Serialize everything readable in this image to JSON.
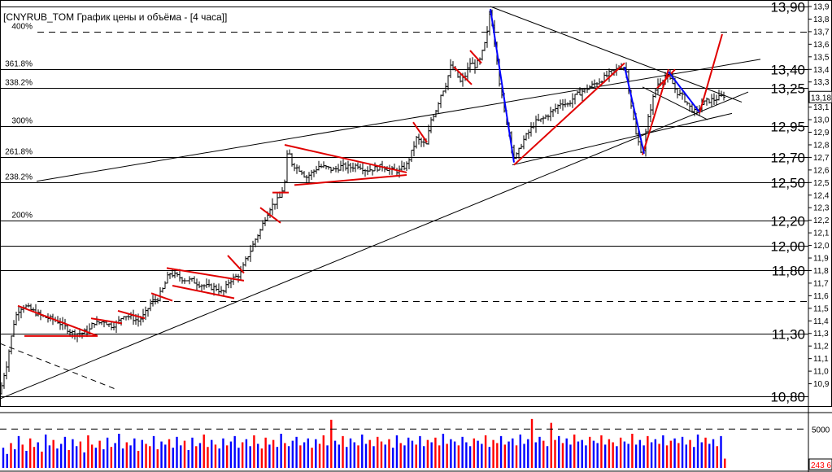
{
  "window": {
    "title": "[CNYRUB_TOM График цены и объёма - [4 часа]]"
  },
  "colors": {
    "bull_volume": "#0000ff",
    "bear_volume": "#ff0000",
    "price_bar": "#000000",
    "trendline_red": "#e00000",
    "trendline_blue": "#0000ff",
    "level_line": "#000000",
    "current_price_box": "#000000",
    "current_volume_text": "#ff0000"
  },
  "chart_data": [
    {
      "type": "ohlc",
      "title": "CNYRUB_TOM",
      "y_ticks_small": [
        "13,9",
        "13,8",
        "13,7",
        "13,6",
        "13,5",
        "13,4",
        "13,3",
        "13,2",
        "13,1",
        "13,0",
        "12,9",
        "12,8",
        "12,7",
        "12,6",
        "12,5",
        "12,4",
        "12,3",
        "12,2",
        "12,1",
        "12,0",
        "11,9",
        "11,8",
        "11,7",
        "11,6",
        "11,5",
        "11,4",
        "11,3",
        "11,2",
        "11,1",
        "11,0",
        "10,9"
      ],
      "ylim": [
        10.8,
        13.95
      ],
      "current_price": "13,18",
      "levels": [
        {
          "value": 13.9,
          "label": "13,90",
          "style": "solid"
        },
        {
          "value": 13.4,
          "label": "13,40",
          "style": "solid"
        },
        {
          "value": 13.25,
          "label": "13,25",
          "style": "solid"
        },
        {
          "value": 12.95,
          "label": "12,95",
          "style": "solid"
        },
        {
          "value": 12.7,
          "label": "12,70",
          "style": "solid"
        },
        {
          "value": 12.5,
          "label": "12,50",
          "style": "solid"
        },
        {
          "value": 12.2,
          "label": "12,20",
          "style": "solid"
        },
        {
          "value": 12.0,
          "label": "12,00",
          "style": "solid"
        },
        {
          "value": 11.8,
          "label": "11,80",
          "style": "solid"
        },
        {
          "value": 11.3,
          "label": "11,30",
          "style": "solid"
        },
        {
          "value": 10.8,
          "label": "10,80",
          "style": "solid"
        }
      ],
      "fib_levels": [
        {
          "value": 13.7,
          "label": "400%"
        },
        {
          "value": 13.4,
          "label": "361.8%"
        },
        {
          "value": 13.25,
          "label": "338.2%"
        },
        {
          "value": 12.95,
          "label": "300%"
        },
        {
          "value": 12.7,
          "label": "261.8%"
        },
        {
          "value": 12.5,
          "label": "238.2%"
        },
        {
          "value": 12.2,
          "label": "200%"
        },
        {
          "value": 11.56,
          "label": ""
        }
      ],
      "close_path": [
        [
          0,
          10.82
        ],
        [
          4,
          10.95
        ],
        [
          8,
          11.05
        ],
        [
          12,
          11.2
        ],
        [
          18,
          11.42
        ],
        [
          24,
          11.5
        ],
        [
          30,
          11.52
        ],
        [
          40,
          11.48
        ],
        [
          50,
          11.44
        ],
        [
          60,
          11.42
        ],
        [
          70,
          11.4
        ],
        [
          80,
          11.35
        ],
        [
          90,
          11.3
        ],
        [
          100,
          11.3
        ],
        [
          110,
          11.33
        ],
        [
          115,
          11.39
        ],
        [
          120,
          11.38
        ],
        [
          128,
          11.4
        ],
        [
          136,
          11.36
        ],
        [
          144,
          11.38
        ],
        [
          152,
          11.45
        ],
        [
          160,
          11.43
        ],
        [
          170,
          11.4
        ],
        [
          178,
          11.45
        ],
        [
          186,
          11.55
        ],
        [
          194,
          11.58
        ],
        [
          200,
          11.65
        ],
        [
          208,
          11.78
        ],
        [
          216,
          11.76
        ],
        [
          226,
          11.73
        ],
        [
          236,
          11.72
        ],
        [
          246,
          11.69
        ],
        [
          256,
          11.67
        ],
        [
          266,
          11.66
        ],
        [
          274,
          11.62
        ],
        [
          282,
          11.72
        ],
        [
          290,
          11.75
        ],
        [
          296,
          11.78
        ],
        [
          302,
          11.88
        ],
        [
          308,
          11.96
        ],
        [
          314,
          12.05
        ],
        [
          320,
          12.12
        ],
        [
          326,
          12.22
        ],
        [
          332,
          12.3
        ],
        [
          338,
          12.34
        ],
        [
          344,
          12.38
        ],
        [
          350,
          12.5
        ],
        [
          354,
          12.78
        ],
        [
          358,
          12.66
        ],
        [
          364,
          12.62
        ],
        [
          370,
          12.6
        ],
        [
          376,
          12.54
        ],
        [
          384,
          12.58
        ],
        [
          392,
          12.63
        ],
        [
          400,
          12.62
        ],
        [
          410,
          12.6
        ],
        [
          420,
          12.63
        ],
        [
          430,
          12.62
        ],
        [
          440,
          12.64
        ],
        [
          450,
          12.6
        ],
        [
          460,
          12.61
        ],
        [
          470,
          12.63
        ],
        [
          480,
          12.6
        ],
        [
          490,
          12.59
        ],
        [
          500,
          12.64
        ],
        [
          506,
          12.74
        ],
        [
          512,
          12.85
        ],
        [
          518,
          12.82
        ],
        [
          524,
          12.8
        ],
        [
          530,
          13.0
        ],
        [
          536,
          13.08
        ],
        [
          542,
          13.2
        ],
        [
          548,
          13.28
        ],
        [
          554,
          13.42
        ],
        [
          560,
          13.38
        ],
        [
          566,
          13.3
        ],
        [
          572,
          13.35
        ],
        [
          578,
          13.45
        ],
        [
          584,
          13.43
        ],
        [
          590,
          13.47
        ],
        [
          596,
          13.6
        ],
        [
          600,
          13.72
        ],
        [
          603,
          13.9
        ],
        [
          606,
          13.7
        ],
        [
          610,
          13.55
        ],
        [
          614,
          13.3
        ],
        [
          620,
          13.06
        ],
        [
          626,
          12.9
        ],
        [
          632,
          12.7
        ],
        [
          636,
          12.72
        ],
        [
          642,
          12.82
        ],
        [
          650,
          12.9
        ],
        [
          658,
          12.98
        ],
        [
          666,
          13.0
        ],
        [
          674,
          13.04
        ],
        [
          682,
          13.08
        ],
        [
          690,
          13.14
        ],
        [
          698,
          13.12
        ],
        [
          706,
          13.18
        ],
        [
          714,
          13.22
        ],
        [
          722,
          13.25
        ],
        [
          730,
          13.28
        ],
        [
          740,
          13.32
        ],
        [
          750,
          13.37
        ],
        [
          758,
          13.4
        ],
        [
          766,
          13.43
        ],
        [
          770,
          13.38
        ],
        [
          776,
          13.12
        ],
        [
          782,
          12.88
        ],
        [
          790,
          12.72
        ],
        [
          796,
          12.98
        ],
        [
          802,
          13.15
        ],
        [
          808,
          13.28
        ],
        [
          814,
          13.32
        ],
        [
          820,
          13.35
        ],
        [
          826,
          13.3
        ],
        [
          832,
          13.22
        ],
        [
          840,
          13.18
        ],
        [
          848,
          13.1
        ],
        [
          856,
          13.05
        ],
        [
          862,
          13.12
        ],
        [
          870,
          13.15
        ],
        [
          878,
          13.16
        ],
        [
          886,
          13.18
        ],
        [
          892,
          13.2
        ]
      ],
      "trend_lines": [
        {
          "color": "black",
          "points": [
            [
              45,
              12.51
            ],
            [
              935,
              13.48
            ]
          ]
        },
        {
          "color": "black",
          "points": [
            [
              0,
              10.78
            ],
            [
              920,
              13.22
            ]
          ]
        },
        {
          "color": "black",
          "points": [
            [
              603,
              13.9
            ],
            [
              912,
              13.14
            ]
          ]
        },
        {
          "color": "black",
          "points": [
            [
              630,
              12.64
            ],
            [
              900,
              13.05
            ]
          ]
        },
        {
          "color": "black",
          "points": [
            [
              790,
              13.26
            ],
            [
              870,
              13.0
            ]
          ]
        },
        {
          "color": "black",
          "points": [
            [
              0,
              11.22
            ],
            [
              145,
              10.85
            ]
          ],
          "dash": true
        },
        {
          "color": "red",
          "points": [
            [
              22,
              11.52
            ],
            [
              120,
              11.28
            ]
          ]
        },
        {
          "color": "red",
          "points": [
            [
              30,
              11.28
            ],
            [
              120,
              11.28
            ]
          ]
        },
        {
          "color": "red",
          "points": [
            [
              112,
              11.42
            ],
            [
              150,
              11.38
            ]
          ]
        },
        {
          "color": "red",
          "points": [
            [
              145,
              11.48
            ],
            [
              178,
              11.42
            ]
          ]
        },
        {
          "color": "red",
          "points": [
            [
              186,
              11.62
            ],
            [
              212,
              11.56
            ]
          ]
        },
        {
          "color": "red",
          "points": [
            [
              205,
              11.82
            ],
            [
              300,
              11.72
            ]
          ]
        },
        {
          "color": "red",
          "points": [
            [
              212,
              11.68
            ],
            [
              288,
              11.58
            ]
          ]
        },
        {
          "color": "red",
          "points": [
            [
              280,
              11.92
            ],
            [
              300,
              11.78
            ]
          ]
        },
        {
          "color": "red",
          "points": [
            [
              320,
              12.3
            ],
            [
              345,
              12.18
            ]
          ]
        },
        {
          "color": "red",
          "points": [
            [
              335,
              12.42
            ],
            [
              355,
              12.42
            ]
          ]
        },
        {
          "color": "red",
          "points": [
            [
              350,
              12.8
            ],
            [
              500,
              12.58
            ]
          ]
        },
        {
          "color": "red",
          "points": [
            [
              362,
              12.48
            ],
            [
              500,
              12.56
            ]
          ]
        },
        {
          "color": "red",
          "points": [
            [
              508,
              12.98
            ],
            [
              525,
              12.82
            ]
          ]
        },
        {
          "color": "red",
          "points": [
            [
              558,
              13.42
            ],
            [
              580,
              13.28
            ]
          ]
        },
        {
          "color": "red",
          "points": [
            [
              578,
              13.55
            ],
            [
              592,
              13.45
            ]
          ]
        },
        {
          "color": "red",
          "points": [
            [
              632,
              12.64
            ],
            [
              768,
              13.45
            ]
          ]
        },
        {
          "color": "red",
          "points": [
            [
              790,
              12.72
            ],
            [
              822,
              13.4
            ]
          ]
        },
        {
          "color": "red",
          "points": [
            [
              808,
              13.25
            ],
            [
              830,
              13.4
            ]
          ]
        },
        {
          "color": "red",
          "points": [
            [
              860,
              13.05
            ],
            [
              888,
              13.68
            ]
          ]
        },
        {
          "color": "blue",
          "points": [
            [
              603,
              13.88
            ],
            [
              632,
              12.66
            ]
          ]
        },
        {
          "color": "blue",
          "points": [
            [
              768,
              13.42
            ],
            [
              792,
              12.73
            ]
          ]
        },
        {
          "color": "blue",
          "points": [
            [
              822,
              13.38
            ],
            [
              860,
              13.06
            ]
          ]
        }
      ]
    },
    {
      "type": "bar",
      "title": "Volume",
      "y_tick": "5000",
      "current_value": "243 6",
      "values": [
        2600,
        1800,
        3200,
        2400,
        4100,
        3000,
        2200,
        3800,
        2700,
        3300,
        2100,
        4300,
        2900,
        3600,
        2500,
        3100,
        4000,
        2300,
        3700,
        2800,
        3400,
        2000,
        4200,
        3000,
        2600,
        3500,
        2400,
        3900,
        2700,
        3200,
        4400,
        2500,
        3300,
        2900,
        3800,
        2200,
        3600,
        3100,
        2800,
        4100,
        2400,
        3400,
        3000,
        3700,
        2600,
        4000,
        2900,
        3500,
        2300,
        3900,
        2800,
        3200,
        4300,
        2700,
        3600,
        3000,
        2500,
        3800,
        2900,
        3400,
        4100,
        2600,
        3300,
        3700,
        2800,
        4200,
        3100,
        2500,
        3900,
        3000,
        3600,
        2700,
        4400,
        3200,
        2800,
        3500,
        4000,
        2900,
        3300,
        3800,
        2600,
        3700,
        3100,
        4200,
        2900,
        6200,
        3500,
        3000,
        4100,
        2700,
        3800,
        3300,
        2900,
        4300,
        3100,
        3600,
        2800,
        4000,
        3400,
        3000,
        3700,
        2600,
        4200,
        3200,
        2900,
        3900,
        3500,
        3000,
        4100,
        2800,
        3600,
        3300,
        3900,
        2900,
        4400,
        3100,
        3700,
        3400,
        2900,
        4000,
        3300,
        2800,
        3800,
        3500,
        3100,
        4200,
        2700,
        3600,
        3200,
        4100,
        3000,
        3400,
        3800,
        2900,
        4300,
        3100,
        3700,
        6300,
        3300,
        4000,
        3500,
        2800,
        5800,
        3600,
        4100,
        3200,
        3800,
        3000,
        4300,
        3400,
        3600,
        2900,
        4000,
        3500,
        3200,
        4200,
        3000,
        3700,
        3300,
        2800,
        3900,
        3400,
        3100,
        4400,
        3000,
        3600,
        2900,
        4100,
        3300,
        3700,
        3100,
        4200,
        2900,
        3500,
        3800,
        3200,
        4000,
        3000,
        3600,
        2700,
        4300,
        3300,
        3900,
        3100,
        3700,
        2800,
        4100,
        1200
      ]
    }
  ]
}
